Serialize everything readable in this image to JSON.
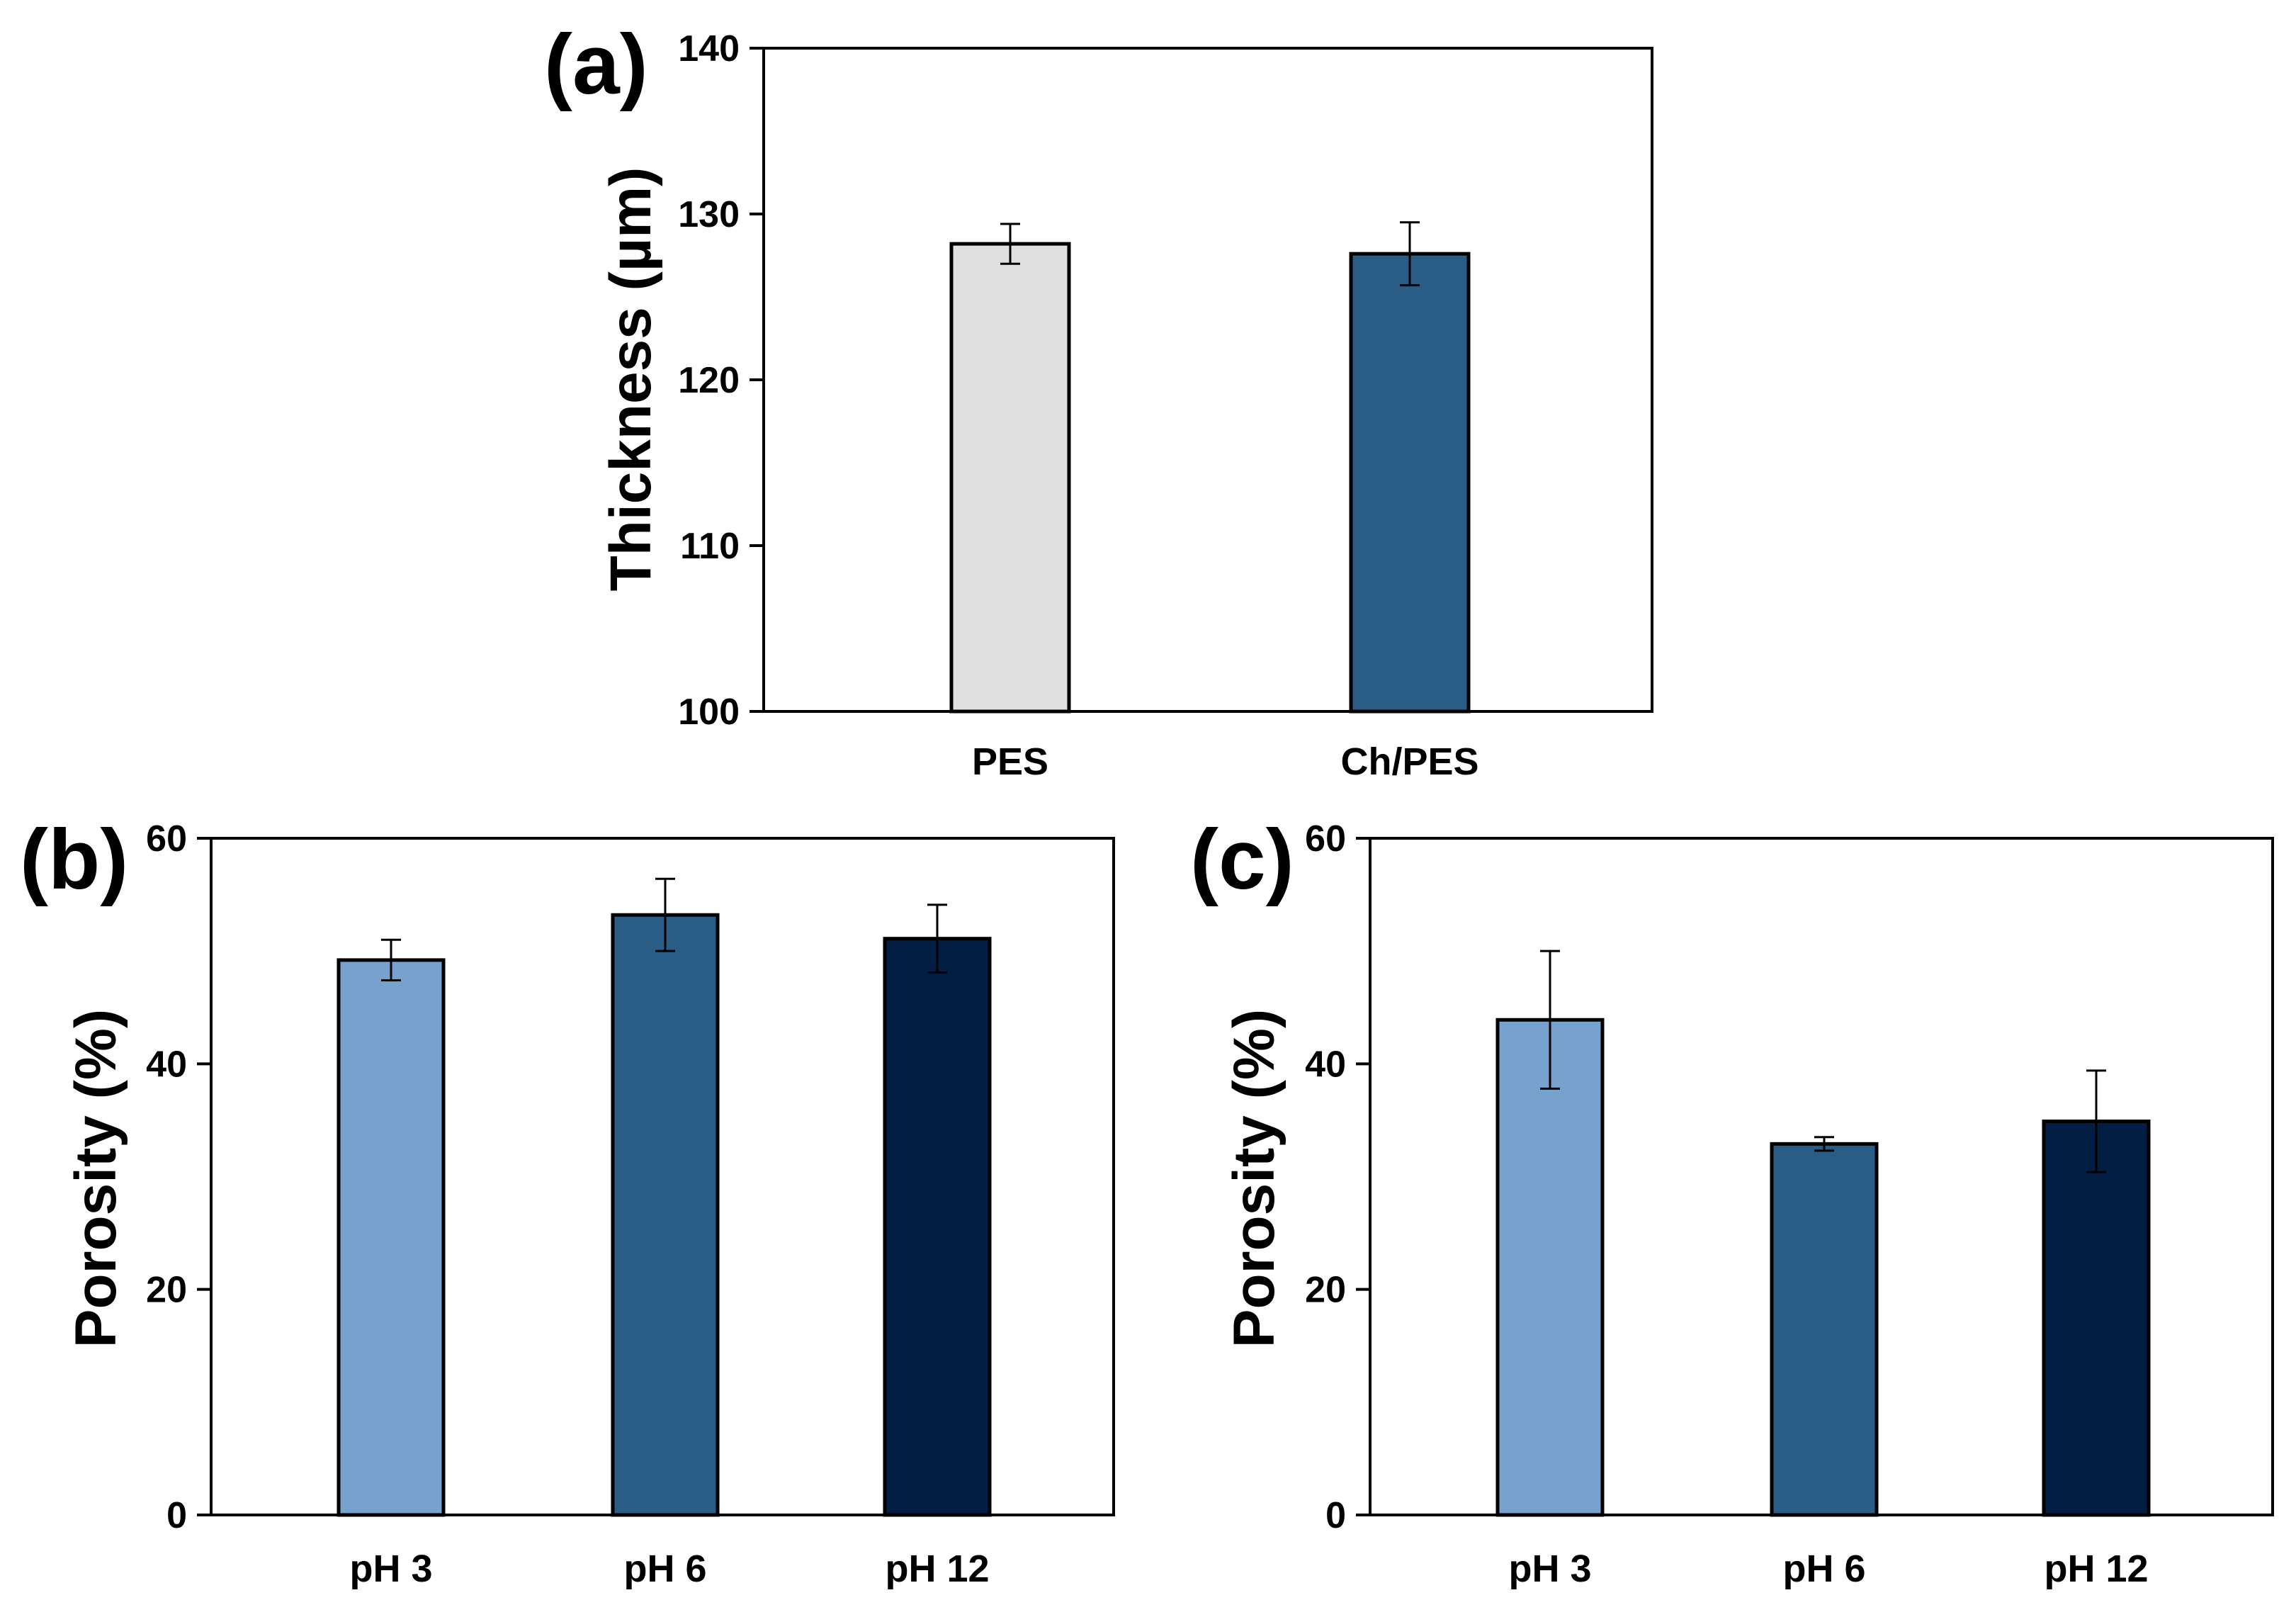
{
  "colors": {
    "pes": "#e0e0e0",
    "ch_pes": "#2a5d86",
    "ph3": "#77a2ce",
    "ph6": "#2a5d86",
    "ph12": "#021f43",
    "axis": "#000000"
  },
  "chart_data": [
    {
      "panel_label": "(a)",
      "type": "bar",
      "title": "",
      "xlabel": "",
      "ylabel": "Thickness (µm)",
      "ylim": [
        100,
        140
      ],
      "yticks": [
        "100",
        "110",
        "120",
        "130",
        "140"
      ],
      "categories": [
        "PES",
        "Ch/PES"
      ],
      "values": [
        128.2,
        127.6
      ],
      "errors": [
        1.2,
        1.9
      ],
      "grid": false
    },
    {
      "panel_label": "(b)",
      "type": "bar",
      "title": "",
      "xlabel": "",
      "ylabel": "Porosity (%)",
      "ylim": [
        0,
        60
      ],
      "yticks": [
        "0",
        "20",
        "40",
        "60"
      ],
      "categories": [
        "pH 3",
        "pH 6",
        "pH 12"
      ],
      "values": [
        49.2,
        53.2,
        51.1
      ],
      "errors": [
        1.8,
        3.2,
        3.0
      ],
      "grid": false
    },
    {
      "panel_label": "(c)",
      "type": "bar",
      "title": "",
      "xlabel": "",
      "ylabel": "Porosity (%)",
      "ylim": [
        0,
        60
      ],
      "yticks": [
        "0",
        "20",
        "40",
        "60"
      ],
      "categories": [
        "pH 3",
        "pH 6",
        "pH 12"
      ],
      "values": [
        43.9,
        32.9,
        34.9
      ],
      "errors": [
        6.1,
        0.6,
        4.5
      ],
      "grid": false
    }
  ]
}
